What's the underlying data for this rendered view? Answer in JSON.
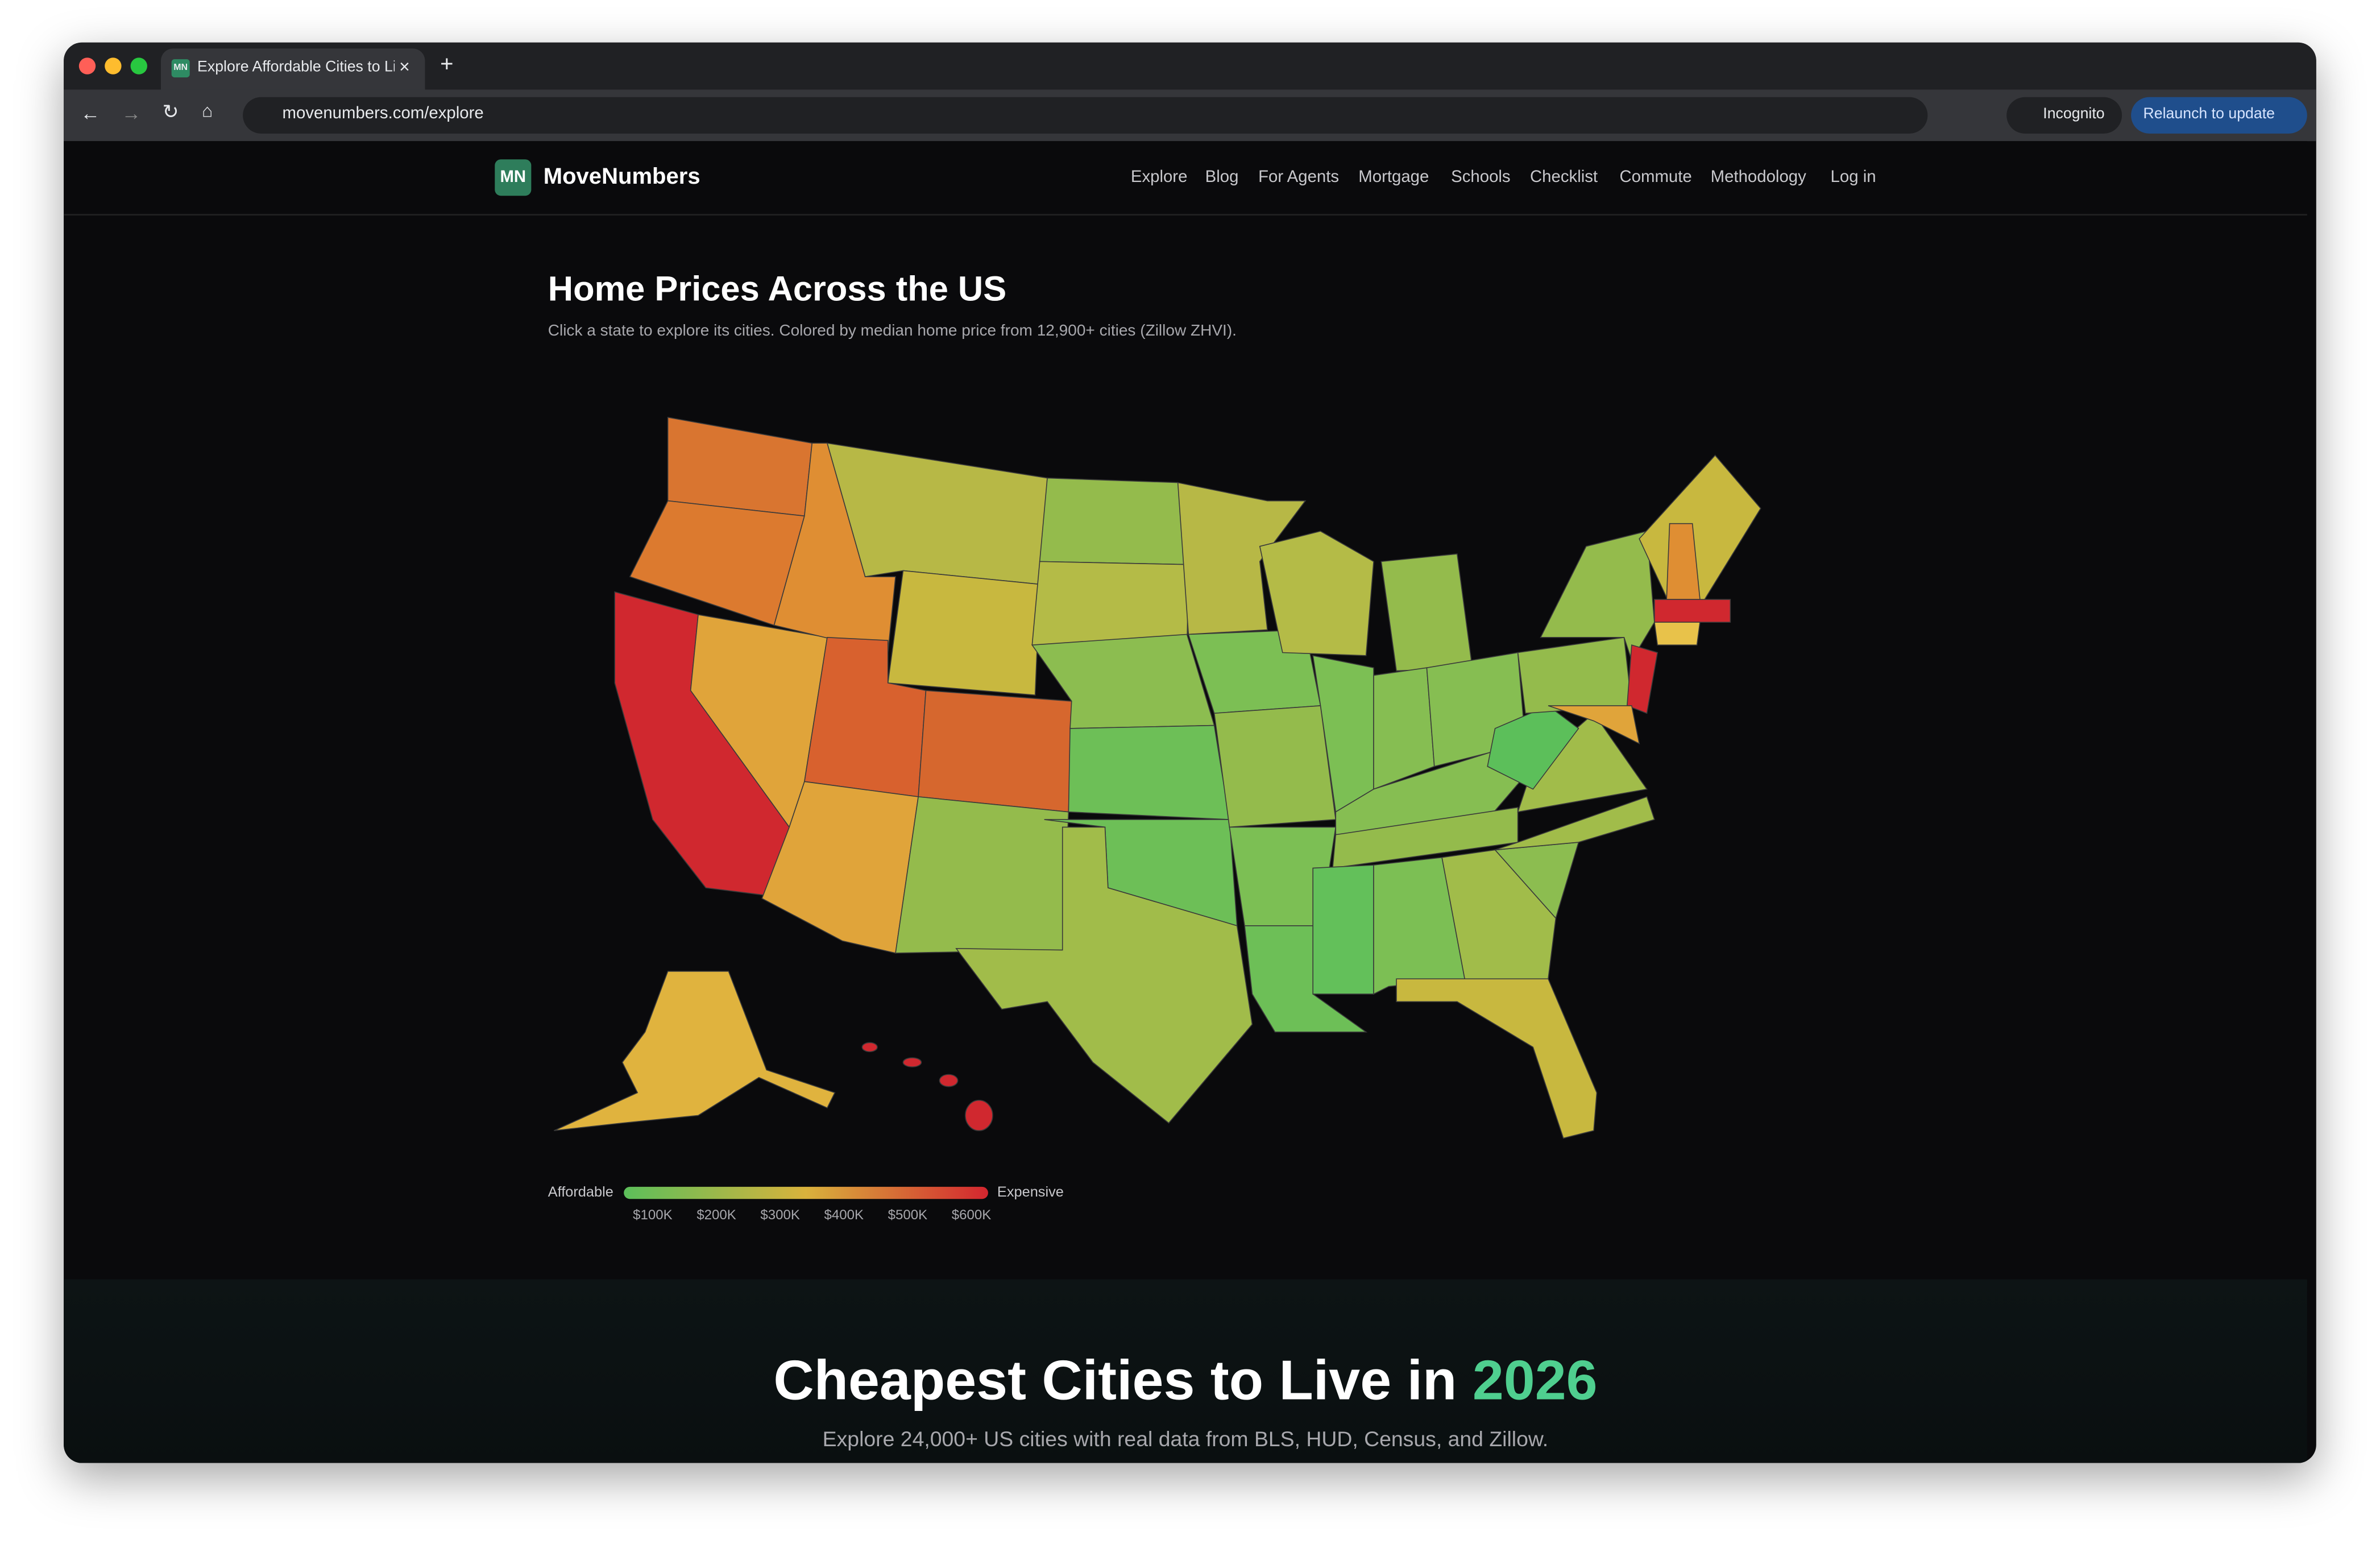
{
  "browser": {
    "tab_icon": "MN",
    "tab_title": "Explore Affordable Cities to Li",
    "url": "movenumbers.com/explore",
    "incognito": "Incognito",
    "relaunch": "Relaunch to update"
  },
  "site": {
    "logo": "MN",
    "brand": "MoveNumbers",
    "nav": [
      "Explore",
      "Blog",
      "For Agents",
      "Mortgage",
      "Schools",
      "Checklist",
      "Commute",
      "Methodology",
      "Log in"
    ]
  },
  "map": {
    "title": "Home Prices Across the US",
    "subtitle": "Click a state to explore its cities. Colored by median home price from 12,900+ cities (Zillow ZHVI).",
    "legend": {
      "low": "Affordable",
      "high": "Expensive",
      "ticks": [
        "$100K",
        "$200K",
        "$300K",
        "$400K",
        "$500K",
        "$600K"
      ]
    }
  },
  "hero": {
    "title": "Cheapest Cities to Live in",
    "highlight": "2026",
    "subtitle": "Explore 24,000+ US cities with real data from BLS, HUD, Census, and Zillow."
  }
}
